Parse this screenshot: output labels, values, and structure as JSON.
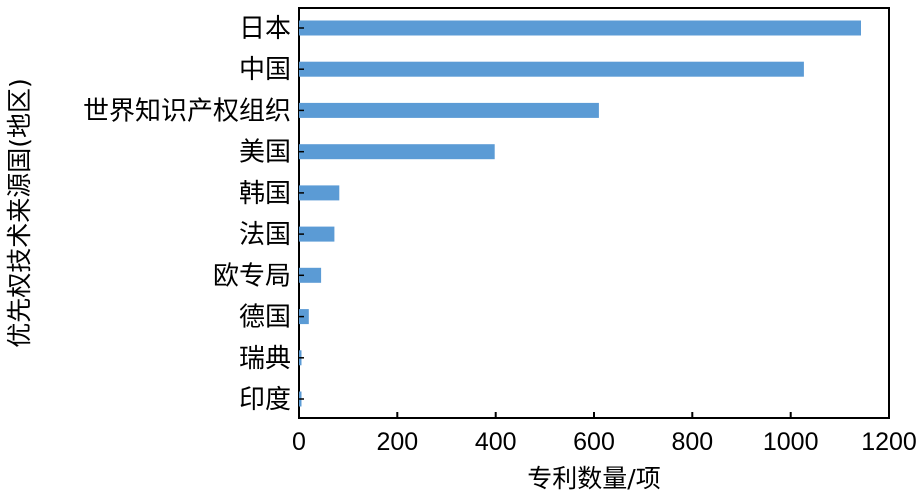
{
  "chart_data": {
    "type": "bar",
    "orientation": "horizontal",
    "categories": [
      "日本",
      "中国",
      "世界知识产权组织",
      "美国",
      "韩国",
      "法国",
      "欧专局",
      "德国",
      "瑞典",
      "印度"
    ],
    "values": [
      1143,
      1027,
      610,
      398,
      82,
      72,
      45,
      20,
      5,
      5
    ],
    "xlabel": "专利数量/项",
    "ylabel": "优先权技术来源国(地区)",
    "xlim": [
      0,
      1200
    ],
    "xticks": [
      0,
      200,
      400,
      600,
      800,
      1000,
      1200
    ],
    "bar_color": "#5B9BD5",
    "grid": false,
    "legend": "none"
  }
}
